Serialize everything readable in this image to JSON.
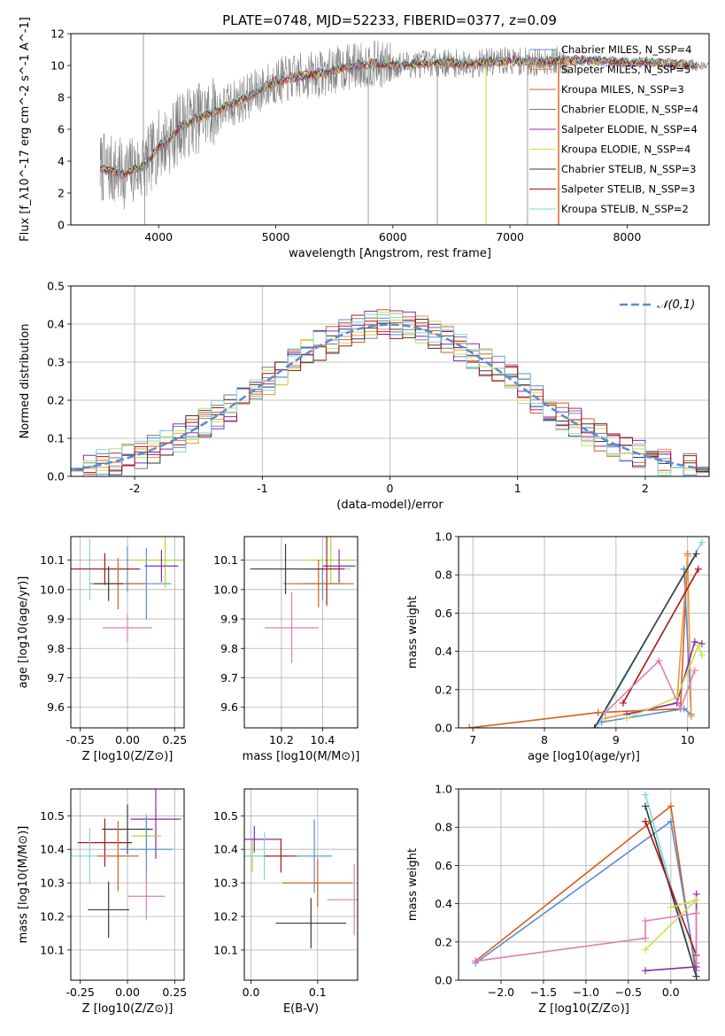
{
  "title": "PLATE=0748, MJD=52233, FIBERID=0377, z=0.09",
  "colors": {
    "Chabrier MILES": "#5b8bd6",
    "Salpeter MILES": "#f0973d",
    "Kroupa MILES": "#d65f1e",
    "Chabrier ELODIE": "#7a7a7a",
    "Salpeter ELODIE": "#8a2ab0",
    "Kroupa ELODIE": "#cde04a",
    "Chabrier STELIB": "#3a3a3a",
    "Salpeter STELIB": "#a81515",
    "Kroupa STELIB": "#7fd6df",
    "pink": "#e07fb6",
    "lime": "#a6d92b",
    "gauss": "#5b8bd6"
  },
  "chart_data": [
    {
      "id": "spectrum",
      "type": "line",
      "xlabel": "wavelength [Angstrom, rest frame]",
      "ylabel": "Flux [f_λ10^-17 erg cm^-2 s^-1 A^-1]",
      "xlim": [
        3250,
        8700
      ],
      "ylim": [
        0,
        12
      ],
      "xticks": [
        4000,
        5000,
        6000,
        7000,
        8000
      ],
      "yticks": [
        0,
        2,
        4,
        6,
        8,
        10,
        12
      ],
      "legend_position": "right",
      "series": [
        {
          "name": "Chabrier MILES, N_SSP=4"
        },
        {
          "name": "Salpeter MILES, N_SSP=5"
        },
        {
          "name": "Kroupa MILES, N_SSP=3"
        },
        {
          "name": "Chabrier ELODIE, N_SSP=4"
        },
        {
          "name": "Salpeter ELODIE, N_SSP=4"
        },
        {
          "name": "Kroupa ELODIE, N_SSP=4"
        },
        {
          "name": "Chabrier STELIB, N_SSP=3"
        },
        {
          "name": "Salpeter STELIB, N_SSP=3"
        },
        {
          "name": "Kroupa STELIB, N_SSP=2"
        }
      ],
      "continuum_x": [
        3500,
        3700,
        3900,
        4000,
        4100,
        4200,
        4400,
        4600,
        4800,
        5000,
        5200,
        5400,
        5600,
        5800,
        6000,
        6200,
        6400,
        6600,
        6800,
        7000,
        7200,
        7400,
        7600,
        7800,
        8000,
        8200,
        8400,
        8600,
        8700
      ],
      "continuum_y": [
        3.6,
        3.2,
        3.8,
        5.0,
        5.4,
        6.3,
        6.9,
        7.5,
        8.2,
        9.0,
        9.3,
        9.5,
        9.9,
        10.1,
        10.0,
        10.1,
        10.2,
        10.1,
        10.2,
        10.3,
        10.2,
        10.3,
        10.3,
        10.3,
        10.2,
        10.2,
        10.1,
        10.0,
        10.0
      ]
    },
    {
      "id": "residuals",
      "type": "bar",
      "xlabel": "(data-model)/error",
      "ylabel": "Normed distribution",
      "xlim": [
        -2.5,
        2.5
      ],
      "ylim": [
        0,
        0.5
      ],
      "xticks": [
        -2,
        -1,
        0,
        1,
        2
      ],
      "yticks": [
        0.0,
        0.1,
        0.2,
        0.3,
        0.4,
        0.5
      ],
      "legend": "𝒩(0,1)",
      "legend_position": "top-right",
      "bin_width": 0.1
    },
    {
      "id": "age_vs_Z",
      "type": "scatter",
      "xlabel": "Z [log10(Z/Z⊙)]",
      "ylabel": "age  [log10(age/yr)]",
      "xlim": [
        -0.3,
        0.3
      ],
      "ylim": [
        9.53,
        10.18
      ],
      "xticks": [
        -0.25,
        0.0,
        0.25
      ],
      "yticks": [
        9.6,
        9.7,
        9.8,
        9.9,
        10.0,
        10.1
      ],
      "points": [
        {
          "x": -0.2,
          "y": 10.07,
          "c": "Kroupa STELIB"
        },
        {
          "x": 0.0,
          "y": 10.07,
          "c": "Chabrier MILES"
        },
        {
          "x": 0.1,
          "y": 10.02,
          "c": "Chabrier MILES"
        },
        {
          "x": 0.2,
          "y": 10.1,
          "c": "lime"
        },
        {
          "x": 0.18,
          "y": 10.08,
          "c": "Salpeter ELODIE"
        },
        {
          "x": -0.12,
          "y": 10.07,
          "c": "Salpeter STELIB"
        },
        {
          "x": -0.05,
          "y": 10.02,
          "c": "Kroupa MILES"
        },
        {
          "x": -0.1,
          "y": 10.02,
          "c": "Chabrier STELIB"
        },
        {
          "x": 0.0,
          "y": 9.87,
          "c": "pink"
        }
      ]
    },
    {
      "id": "age_vs_mass",
      "type": "scatter",
      "xlabel": "mass [log10(M/M⊙)]",
      "xlim": [
        10.02,
        10.57
      ],
      "ylim": [
        9.53,
        10.18
      ],
      "xticks": [
        10.2,
        10.4
      ],
      "yticks": [
        9.6,
        9.7,
        9.8,
        9.9,
        10.0,
        10.1
      ],
      "points": [
        {
          "x": 10.4,
          "y": 10.07,
          "c": "Kroupa STELIB"
        },
        {
          "x": 10.4,
          "y": 10.02,
          "c": "Chabrier MILES"
        },
        {
          "x": 10.44,
          "y": 10.1,
          "c": "lime"
        },
        {
          "x": 10.48,
          "y": 10.08,
          "c": "Salpeter ELODIE"
        },
        {
          "x": 10.42,
          "y": 10.07,
          "c": "Salpeter STELIB"
        },
        {
          "x": 10.38,
          "y": 10.02,
          "c": "Kroupa MILES"
        },
        {
          "x": 10.22,
          "y": 10.07,
          "c": "Chabrier STELIB"
        },
        {
          "x": 10.25,
          "y": 9.87,
          "c": "pink"
        }
      ]
    },
    {
      "id": "weight_vs_age",
      "type": "line",
      "xlabel": "age  [log10(age/yr)]",
      "ylabel": "mass weight",
      "xlim": [
        6.8,
        10.3
      ],
      "ylim": [
        0,
        1
      ],
      "xticks": [
        7,
        8,
        9,
        10
      ],
      "yticks": [
        0.0,
        0.2,
        0.4,
        0.6,
        0.8,
        1.0
      ],
      "series": [
        {
          "c": "Kroupa MILES",
          "x": [
            6.95,
            8.75,
            9.9,
            10.0
          ],
          "y": [
            0.0,
            0.08,
            0.1,
            0.91
          ]
        },
        {
          "c": "Chabrier MILES",
          "x": [
            8.8,
            9.95,
            10.05,
            9.95
          ],
          "y": [
            0.03,
            0.1,
            0.07,
            0.83
          ]
        },
        {
          "c": "Salpeter MILES",
          "x": [
            8.85,
            9.85,
            10.0,
            10.05
          ],
          "y": [
            0.05,
            0.13,
            0.9,
            0.06
          ]
        },
        {
          "c": "Kroupa STELIB",
          "x": [
            8.75,
            10.2
          ],
          "y": [
            0.02,
            0.97
          ]
        },
        {
          "c": "Chabrier STELIB",
          "x": [
            8.7,
            10.12
          ],
          "y": [
            0.0,
            0.91
          ]
        },
        {
          "c": "Salpeter STELIB",
          "x": [
            9.1,
            10.15
          ],
          "y": [
            0.13,
            0.83
          ]
        },
        {
          "c": "Salpeter ELODIE",
          "x": [
            9.15,
            9.85,
            10.1,
            10.2
          ],
          "y": [
            0.07,
            0.13,
            0.45,
            0.44
          ]
        },
        {
          "c": "Kroupa ELODIE",
          "x": [
            9.15,
            9.85,
            10.15,
            10.2
          ],
          "y": [
            0.05,
            0.16,
            0.43,
            0.38
          ]
        },
        {
          "c": "pink",
          "x": [
            8.85,
            9.6,
            9.9,
            10.1
          ],
          "y": [
            0.08,
            0.35,
            0.1,
            0.3
          ]
        }
      ]
    },
    {
      "id": "mass_vs_Z",
      "type": "scatter",
      "xlabel": "Z [log10(Z/Z⊙)]",
      "ylabel": "mass [log10(M/M⊙)]",
      "xlim": [
        -0.3,
        0.3
      ],
      "ylim": [
        10.01,
        10.58
      ],
      "xticks": [
        -0.25,
        0.0,
        0.25
      ],
      "yticks": [
        10.1,
        10.2,
        10.3,
        10.4,
        10.5
      ],
      "points": [
        {
          "x": 0.0,
          "y": 10.46,
          "c": "Chabrier STELIB"
        },
        {
          "x": 0.15,
          "y": 10.49,
          "c": "Salpeter ELODIE"
        },
        {
          "x": 0.1,
          "y": 10.44,
          "c": "lime"
        },
        {
          "x": -0.12,
          "y": 10.42,
          "c": "Salpeter STELIB"
        },
        {
          "x": 0.1,
          "y": 10.4,
          "c": "Chabrier MILES"
        },
        {
          "x": -0.2,
          "y": 10.38,
          "c": "Kroupa STELIB"
        },
        {
          "x": -0.05,
          "y": 10.38,
          "c": "Kroupa MILES"
        },
        {
          "x": 0.1,
          "y": 10.26,
          "c": "pink"
        },
        {
          "x": -0.1,
          "y": 10.22,
          "c": "Chabrier STELIB"
        }
      ]
    },
    {
      "id": "mass_vs_ebv",
      "type": "scatter",
      "xlabel": "E(B-V)",
      "xlim": [
        -0.01,
        0.16
      ],
      "ylim": [
        10.01,
        10.58
      ],
      "xticks": [
        0.0,
        0.1
      ],
      "yticks": [
        10.1,
        10.2,
        10.3,
        10.4,
        10.5
      ],
      "points": [
        {
          "x": 0.005,
          "y": 10.43,
          "c": "Salpeter ELODIE"
        },
        {
          "x": 0.002,
          "y": 10.38,
          "c": "lime"
        },
        {
          "x": 0.02,
          "y": 10.38,
          "c": "Kroupa STELIB"
        },
        {
          "x": 0.045,
          "y": 10.38,
          "c": "Salpeter STELIB"
        },
        {
          "x": 0.095,
          "y": 10.38,
          "c": "Chabrier MILES"
        },
        {
          "x": 0.1,
          "y": 10.3,
          "c": "Kroupa MILES"
        },
        {
          "x": 0.09,
          "y": 10.18,
          "c": "Chabrier STELIB"
        },
        {
          "x": 0.155,
          "y": 10.25,
          "c": "pink"
        }
      ]
    },
    {
      "id": "weight_vs_Z",
      "type": "line",
      "xlabel": "Z [log10(Z/Z⊙)]",
      "ylabel": "mass weight",
      "xlim": [
        -2.5,
        0.45
      ],
      "ylim": [
        0,
        1
      ],
      "xticks": [
        -2.0,
        -1.5,
        -1.0,
        -0.5,
        0.0
      ],
      "yticks": [
        0.0,
        0.2,
        0.4,
        0.6,
        0.8,
        1.0
      ],
      "series": [
        {
          "c": "Kroupa MILES",
          "x": [
            -2.3,
            0.0,
            0.3
          ],
          "y": [
            0.1,
            0.91,
            0.02
          ]
        },
        {
          "c": "Chabrier MILES",
          "x": [
            -2.3,
            0.0,
            0.3
          ],
          "y": [
            0.09,
            0.83,
            0.05
          ]
        },
        {
          "c": "Kroupa STELIB",
          "x": [
            -0.3,
            0.3
          ],
          "y": [
            0.97,
            0.02
          ]
        },
        {
          "c": "Chabrier STELIB",
          "x": [
            -0.3,
            0.3
          ],
          "y": [
            0.91,
            0.02
          ]
        },
        {
          "c": "Salpeter STELIB",
          "x": [
            -0.3,
            0.3,
            0.3
          ],
          "y": [
            0.83,
            0.13,
            0.09
          ]
        },
        {
          "c": "Salpeter ELODIE",
          "x": [
            -0.3,
            0.3,
            0.3
          ],
          "y": [
            0.05,
            0.07,
            0.45
          ]
        },
        {
          "c": "Kroupa ELODIE",
          "x": [
            -0.3,
            0.3,
            0.0
          ],
          "y": [
            0.16,
            0.42,
            0.38
          ]
        },
        {
          "c": "pink",
          "x": [
            -2.3,
            -0.3,
            -0.3,
            0.3,
            0.3
          ],
          "y": [
            0.1,
            0.22,
            0.31,
            0.35,
            0.09
          ]
        }
      ]
    }
  ]
}
